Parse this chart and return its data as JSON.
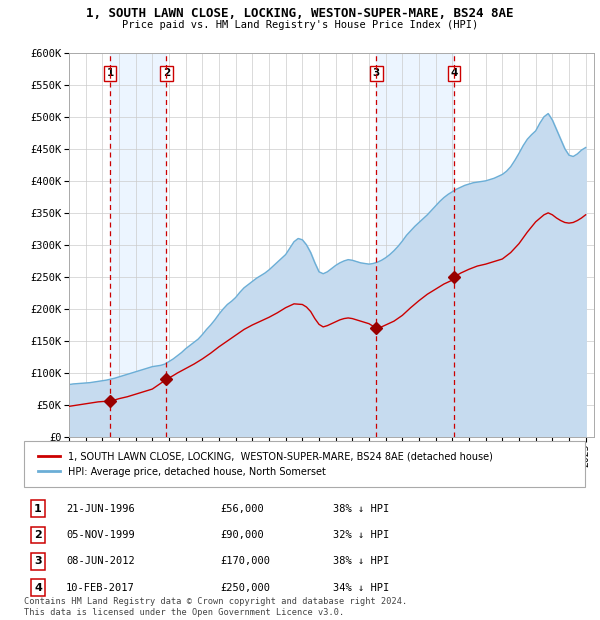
{
  "title": "1, SOUTH LAWN CLOSE, LOCKING, WESTON-SUPER-MARE, BS24 8AE",
  "subtitle": "Price paid vs. HM Land Registry's House Price Index (HPI)",
  "ylim": [
    0,
    600000
  ],
  "yticks": [
    0,
    50000,
    100000,
    150000,
    200000,
    250000,
    300000,
    350000,
    400000,
    450000,
    500000,
    550000,
    600000
  ],
  "ytick_labels": [
    "£0",
    "£50K",
    "£100K",
    "£150K",
    "£200K",
    "£250K",
    "£300K",
    "£350K",
    "£400K",
    "£450K",
    "£500K",
    "£550K",
    "£600K"
  ],
  "xlim_start": 1994.0,
  "xlim_end": 2025.5,
  "sale_dates_num": [
    1996.47,
    1999.84,
    2012.44,
    2017.11
  ],
  "sale_prices": [
    56000,
    90000,
    170000,
    250000
  ],
  "sale_labels": [
    "1",
    "2",
    "3",
    "4"
  ],
  "sale_date_strs": [
    "21-JUN-1996",
    "05-NOV-1999",
    "08-JUN-2012",
    "10-FEB-2017"
  ],
  "sale_price_strs": [
    "£56,000",
    "£90,000",
    "£170,000",
    "£250,000"
  ],
  "sale_hpi_strs": [
    "38% ↓ HPI",
    "32% ↓ HPI",
    "38% ↓ HPI",
    "34% ↓ HPI"
  ],
  "hpi_color": "#6baed6",
  "hpi_fill_color": "#c6dbef",
  "sold_color": "#cc0000",
  "sold_marker_color": "#990000",
  "label_box_color": "#cc0000",
  "bg_shade_color": "#ddeeff",
  "grid_color": "#cccccc",
  "legend_label_sold": "1, SOUTH LAWN CLOSE, LOCKING,  WESTON-SUPER-MARE, BS24 8AE (detached house)",
  "legend_label_hpi": "HPI: Average price, detached house, North Somerset",
  "footnote": "Contains HM Land Registry data © Crown copyright and database right 2024.\nThis data is licensed under the Open Government Licence v3.0.",
  "hpi_data": [
    [
      1994.0,
      82000
    ],
    [
      1994.25,
      83000
    ],
    [
      1994.5,
      83500
    ],
    [
      1994.75,
      84000
    ],
    [
      1995.0,
      84500
    ],
    [
      1995.25,
      85000
    ],
    [
      1995.5,
      86000
    ],
    [
      1995.75,
      87000
    ],
    [
      1996.0,
      88000
    ],
    [
      1996.25,
      89000
    ],
    [
      1996.5,
      90500
    ],
    [
      1996.75,
      92000
    ],
    [
      1997.0,
      94000
    ],
    [
      1997.25,
      96000
    ],
    [
      1997.5,
      98000
    ],
    [
      1997.75,
      100000
    ],
    [
      1998.0,
      102000
    ],
    [
      1998.25,
      104000
    ],
    [
      1998.5,
      106000
    ],
    [
      1998.75,
      108000
    ],
    [
      1999.0,
      110000
    ],
    [
      1999.25,
      111000
    ],
    [
      1999.5,
      112000
    ],
    [
      1999.75,
      114000
    ],
    [
      2000.0,
      118000
    ],
    [
      2000.25,
      122000
    ],
    [
      2000.5,
      127000
    ],
    [
      2000.75,
      132000
    ],
    [
      2001.0,
      138000
    ],
    [
      2001.25,
      143000
    ],
    [
      2001.5,
      148000
    ],
    [
      2001.75,
      153000
    ],
    [
      2002.0,
      160000
    ],
    [
      2002.25,
      168000
    ],
    [
      2002.5,
      175000
    ],
    [
      2002.75,
      183000
    ],
    [
      2003.0,
      192000
    ],
    [
      2003.25,
      200000
    ],
    [
      2003.5,
      207000
    ],
    [
      2003.75,
      212000
    ],
    [
      2004.0,
      218000
    ],
    [
      2004.25,
      226000
    ],
    [
      2004.5,
      233000
    ],
    [
      2004.75,
      238000
    ],
    [
      2005.0,
      243000
    ],
    [
      2005.25,
      248000
    ],
    [
      2005.5,
      252000
    ],
    [
      2005.75,
      256000
    ],
    [
      2006.0,
      261000
    ],
    [
      2006.25,
      267000
    ],
    [
      2006.5,
      273000
    ],
    [
      2006.75,
      279000
    ],
    [
      2007.0,
      285000
    ],
    [
      2007.25,
      295000
    ],
    [
      2007.5,
      305000
    ],
    [
      2007.75,
      310000
    ],
    [
      2008.0,
      308000
    ],
    [
      2008.25,
      300000
    ],
    [
      2008.5,
      288000
    ],
    [
      2008.75,
      272000
    ],
    [
      2009.0,
      258000
    ],
    [
      2009.25,
      255000
    ],
    [
      2009.5,
      258000
    ],
    [
      2009.75,
      263000
    ],
    [
      2010.0,
      268000
    ],
    [
      2010.25,
      272000
    ],
    [
      2010.5,
      275000
    ],
    [
      2010.75,
      277000
    ],
    [
      2011.0,
      276000
    ],
    [
      2011.25,
      274000
    ],
    [
      2011.5,
      272000
    ],
    [
      2011.75,
      271000
    ],
    [
      2012.0,
      270000
    ],
    [
      2012.25,
      271000
    ],
    [
      2012.5,
      273000
    ],
    [
      2012.75,
      276000
    ],
    [
      2013.0,
      280000
    ],
    [
      2013.25,
      285000
    ],
    [
      2013.5,
      291000
    ],
    [
      2013.75,
      298000
    ],
    [
      2014.0,
      306000
    ],
    [
      2014.25,
      315000
    ],
    [
      2014.5,
      322000
    ],
    [
      2014.75,
      329000
    ],
    [
      2015.0,
      335000
    ],
    [
      2015.25,
      341000
    ],
    [
      2015.5,
      347000
    ],
    [
      2015.75,
      354000
    ],
    [
      2016.0,
      361000
    ],
    [
      2016.25,
      368000
    ],
    [
      2016.5,
      374000
    ],
    [
      2016.75,
      379000
    ],
    [
      2017.0,
      383000
    ],
    [
      2017.25,
      387000
    ],
    [
      2017.5,
      390000
    ],
    [
      2017.75,
      393000
    ],
    [
      2018.0,
      395000
    ],
    [
      2018.25,
      397000
    ],
    [
      2018.5,
      398000
    ],
    [
      2018.75,
      399000
    ],
    [
      2019.0,
      400000
    ],
    [
      2019.25,
      402000
    ],
    [
      2019.5,
      404000
    ],
    [
      2019.75,
      407000
    ],
    [
      2020.0,
      410000
    ],
    [
      2020.25,
      415000
    ],
    [
      2020.5,
      422000
    ],
    [
      2020.75,
      432000
    ],
    [
      2021.0,
      443000
    ],
    [
      2021.25,
      455000
    ],
    [
      2021.5,
      465000
    ],
    [
      2021.75,
      472000
    ],
    [
      2022.0,
      478000
    ],
    [
      2022.25,
      490000
    ],
    [
      2022.5,
      500000
    ],
    [
      2022.75,
      505000
    ],
    [
      2023.0,
      495000
    ],
    [
      2023.25,
      480000
    ],
    [
      2023.5,
      465000
    ],
    [
      2023.75,
      450000
    ],
    [
      2024.0,
      440000
    ],
    [
      2024.25,
      438000
    ],
    [
      2024.5,
      442000
    ],
    [
      2024.75,
      448000
    ],
    [
      2025.0,
      452000
    ]
  ],
  "sold_data": [
    [
      1994.0,
      48000
    ],
    [
      1994.25,
      49000
    ],
    [
      1994.5,
      50000
    ],
    [
      1994.75,
      51000
    ],
    [
      1995.0,
      52000
    ],
    [
      1995.25,
      53000
    ],
    [
      1995.5,
      54000
    ],
    [
      1995.75,
      55000
    ],
    [
      1996.0,
      55500
    ],
    [
      1996.47,
      56000
    ],
    [
      1996.75,
      58000
    ],
    [
      1997.0,
      60000
    ],
    [
      1997.5,
      63000
    ],
    [
      1998.0,
      67000
    ],
    [
      1998.5,
      71000
    ],
    [
      1999.0,
      75000
    ],
    [
      1999.84,
      90000
    ],
    [
      2000.25,
      96000
    ],
    [
      2000.5,
      100000
    ],
    [
      2001.0,
      107000
    ],
    [
      2001.5,
      114000
    ],
    [
      2002.0,
      122000
    ],
    [
      2002.5,
      131000
    ],
    [
      2003.0,
      141000
    ],
    [
      2003.5,
      150000
    ],
    [
      2004.0,
      159000
    ],
    [
      2004.5,
      168000
    ],
    [
      2005.0,
      175000
    ],
    [
      2005.5,
      181000
    ],
    [
      2006.0,
      187000
    ],
    [
      2006.5,
      194000
    ],
    [
      2007.0,
      202000
    ],
    [
      2007.5,
      208000
    ],
    [
      2008.0,
      207000
    ],
    [
      2008.25,
      203000
    ],
    [
      2008.5,
      196000
    ],
    [
      2008.75,
      185000
    ],
    [
      2009.0,
      176000
    ],
    [
      2009.25,
      172000
    ],
    [
      2009.5,
      174000
    ],
    [
      2009.75,
      177000
    ],
    [
      2010.0,
      180000
    ],
    [
      2010.25,
      183000
    ],
    [
      2010.5,
      185000
    ],
    [
      2010.75,
      186000
    ],
    [
      2011.0,
      185000
    ],
    [
      2011.25,
      183000
    ],
    [
      2011.5,
      181000
    ],
    [
      2011.75,
      179000
    ],
    [
      2012.0,
      177000
    ],
    [
      2012.44,
      170000
    ],
    [
      2012.75,
      172000
    ],
    [
      2013.0,
      175000
    ],
    [
      2013.5,
      181000
    ],
    [
      2014.0,
      190000
    ],
    [
      2014.5,
      202000
    ],
    [
      2015.0,
      213000
    ],
    [
      2015.5,
      223000
    ],
    [
      2016.0,
      231000
    ],
    [
      2016.5,
      239000
    ],
    [
      2017.0,
      245000
    ],
    [
      2017.11,
      250000
    ],
    [
      2017.5,
      256000
    ],
    [
      2018.0,
      262000
    ],
    [
      2018.5,
      267000
    ],
    [
      2019.0,
      270000
    ],
    [
      2019.5,
      274000
    ],
    [
      2020.0,
      278000
    ],
    [
      2020.5,
      288000
    ],
    [
      2021.0,
      302000
    ],
    [
      2021.5,
      320000
    ],
    [
      2022.0,
      336000
    ],
    [
      2022.5,
      347000
    ],
    [
      2022.75,
      350000
    ],
    [
      2023.0,
      347000
    ],
    [
      2023.25,
      342000
    ],
    [
      2023.5,
      338000
    ],
    [
      2023.75,
      335000
    ],
    [
      2024.0,
      334000
    ],
    [
      2024.25,
      335000
    ],
    [
      2024.5,
      338000
    ],
    [
      2024.75,
      342000
    ],
    [
      2025.0,
      347000
    ]
  ]
}
